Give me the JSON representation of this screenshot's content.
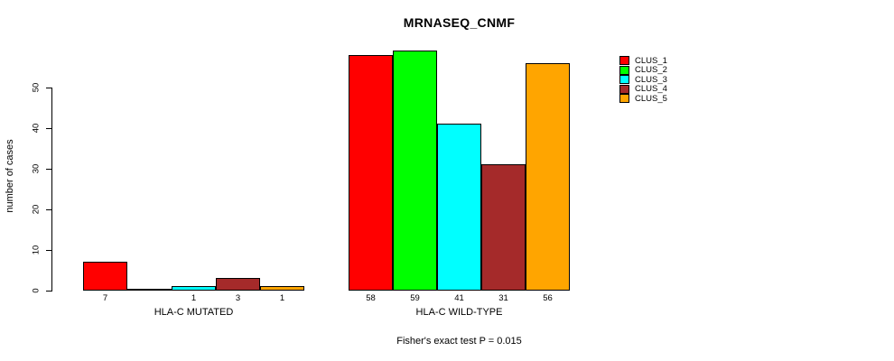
{
  "title": "MRNASEQ_CNMF",
  "footer": "Fisher's exact test P = 0.015",
  "ylabel": "number of cases",
  "chart_data": {
    "type": "bar",
    "title": "MRNASEQ_CNMF",
    "xlabel": "",
    "ylabel": "number of cases",
    "ylim": [
      0,
      50
    ],
    "yticks": [
      0,
      10,
      20,
      30,
      40,
      50
    ],
    "grid": false,
    "legend_position": "top-right",
    "annotation": "Fisher's exact test P = 0.015",
    "series": [
      {
        "name": "CLUS_1",
        "color": "#FF0000"
      },
      {
        "name": "CLUS_2",
        "color": "#00FF00"
      },
      {
        "name": "CLUS_3",
        "color": "#00FFFF"
      },
      {
        "name": "CLUS_4",
        "color": "#A52A2A"
      },
      {
        "name": "CLUS_5",
        "color": "#FFA500"
      }
    ],
    "groups": [
      {
        "label": "HLA-C MUTATED",
        "values": [
          7,
          0,
          1,
          3,
          1
        ],
        "bar_labels": [
          "7",
          "",
          "1",
          "3",
          "1"
        ]
      },
      {
        "label": "HLA-C WILD-TYPE",
        "values": [
          58,
          59,
          41,
          31,
          56
        ],
        "bar_labels": [
          "58",
          "59",
          "41",
          "31",
          "56"
        ]
      }
    ]
  }
}
